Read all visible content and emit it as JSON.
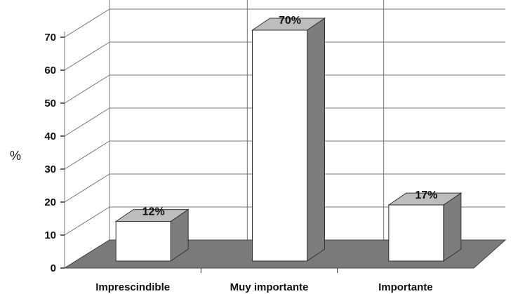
{
  "chart_data": {
    "type": "bar",
    "categories": [
      "Imprescindible",
      "Muy importante",
      "Importante"
    ],
    "values": [
      12,
      70,
      17
    ],
    "data_labels": [
      "12%",
      "70%",
      "17%"
    ],
    "ylabel": "%",
    "ylim": [
      0,
      70
    ],
    "yticks": [
      0,
      10,
      20,
      30,
      40,
      50,
      60,
      70
    ],
    "grid": true,
    "style": "3d",
    "colors": {
      "bar_front": "#ffffff",
      "bar_side": "#7d7d7d",
      "bar_top": "#bdbdbd",
      "floor": "#7a7a7a",
      "grid": "#777777"
    }
  }
}
